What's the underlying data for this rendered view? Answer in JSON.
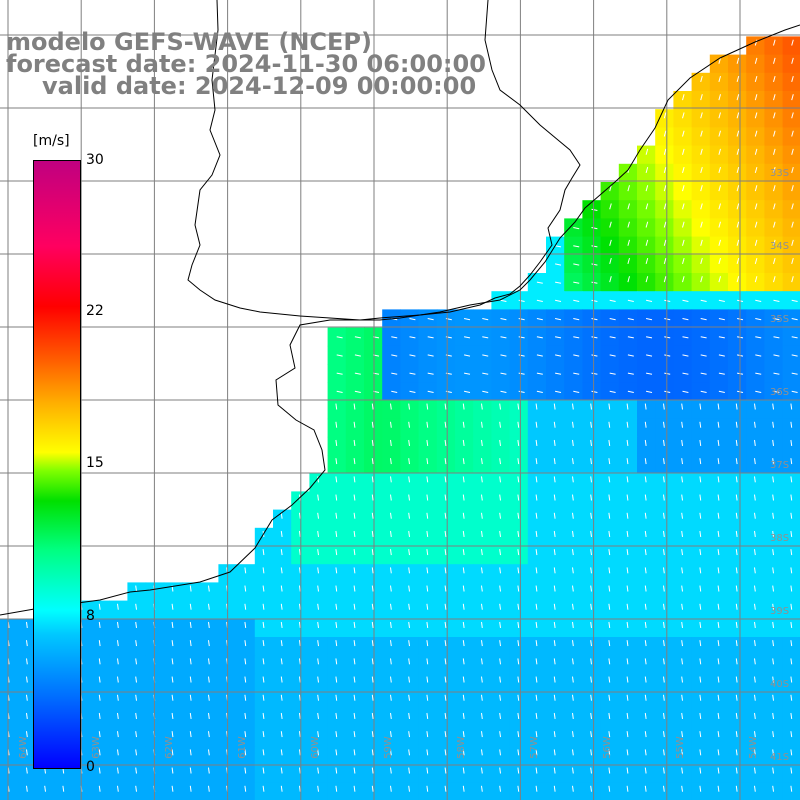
{
  "title": {
    "line1": "modelo GEFS-WAVE (NCEP)",
    "line2": "forecast date: 2024-11-30 06:00:00",
    "line3": "valid date: 2024-12-09 00:00:00"
  },
  "colorbar": {
    "units": "[m/s]",
    "ticks": [
      "30",
      "22",
      "15",
      "8",
      "0"
    ],
    "tick_values": [
      30,
      22,
      15,
      8,
      0
    ],
    "range": [
      0,
      30
    ]
  },
  "map": {
    "lat_labels": [
      "33S",
      "34S",
      "35S",
      "36S",
      "37S",
      "38S",
      "39S",
      "40S",
      "41S"
    ],
    "lon_labels": [
      "64W",
      "63W",
      "62W",
      "61W",
      "60W",
      "59W",
      "58W",
      "57W",
      "56W",
      "55W",
      "54W"
    ],
    "colors": {
      "land": "#ffffff",
      "grid": "#7f7f7f",
      "coast": "#000000",
      "arrows": "#ffffff"
    }
  }
}
